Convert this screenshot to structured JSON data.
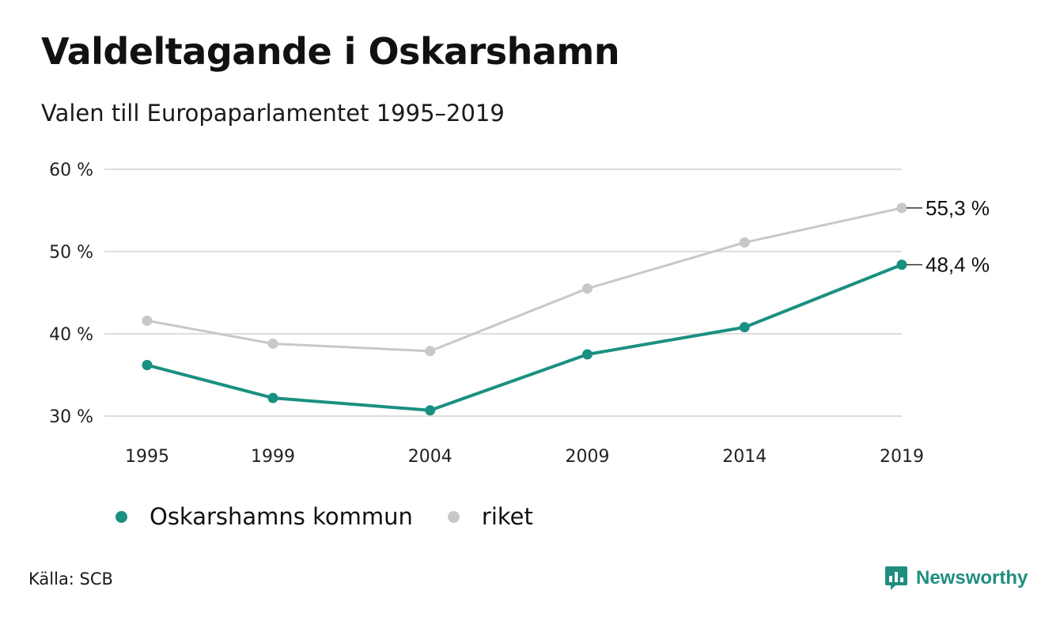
{
  "title": "Valdeltagande i Oskarshamn",
  "subtitle": "Valen till Europaparlamentet 1995–2019",
  "source": "Källa: SCB",
  "brand": "Newsworthy",
  "colors": {
    "kommun": "#1a9080",
    "riket": "#c8c8c8",
    "grid": "#dddddd"
  },
  "chart_data": {
    "type": "line",
    "x": [
      1995,
      1999,
      2004,
      2009,
      2014,
      2019
    ],
    "x_tick_labels": [
      "1995",
      "1999",
      "2004",
      "2009",
      "2014",
      "2019"
    ],
    "ylim": [
      30,
      60
    ],
    "y_ticks": [
      30,
      40,
      50,
      60
    ],
    "y_tick_labels": [
      "30 %",
      "40 %",
      "50 %",
      "60 %"
    ],
    "grid": true,
    "legend_position": "bottom-left",
    "series": [
      {
        "name": "Oskarshamns kommun",
        "color": "#1a9080",
        "values": [
          36.2,
          32.2,
          30.7,
          37.5,
          40.8,
          48.4
        ],
        "end_label": "48,4 %"
      },
      {
        "name": "riket",
        "color": "#c8c8c8",
        "values": [
          41.6,
          38.8,
          37.9,
          45.5,
          51.1,
          55.3
        ],
        "end_label": "55,3 %"
      }
    ]
  }
}
